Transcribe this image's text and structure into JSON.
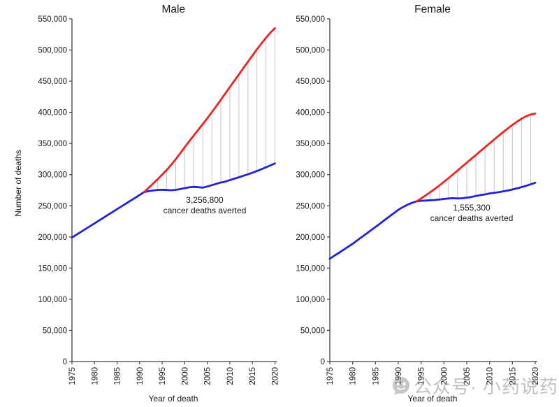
{
  "watermark": {
    "text": "公众号· 小药说药",
    "icon": "wechat-chat-bubble-icon",
    "color": "#9a9a9a"
  },
  "palette": {
    "observed_line": "#2222dd",
    "expected_line": "#ee2222",
    "connector_line": "#c6c6c6",
    "axis": "#404040"
  },
  "chart_data": [
    {
      "type": "line",
      "title": "Male",
      "xlabel": "Year of death",
      "ylabel": "Number of deaths",
      "xlim": [
        1975,
        2020
      ],
      "ylim": [
        0,
        550000
      ],
      "x_ticks": [
        1975,
        1980,
        1985,
        1990,
        1995,
        2000,
        2005,
        2010,
        2015,
        2020
      ],
      "y_ticks": [
        0,
        50000,
        100000,
        150000,
        200000,
        250000,
        300000,
        350000,
        400000,
        450000,
        500000,
        550000
      ],
      "grid": false,
      "annotation": {
        "value": "3,256,800",
        "label": "cancer deaths averted"
      },
      "series": [
        {
          "name": "observed deaths",
          "color_key": "observed_line",
          "start_year": 1975,
          "values": [
            199000,
            203600,
            208100,
            212700,
            217200,
            221800,
            226400,
            230900,
            235500,
            240000,
            244600,
            249200,
            253700,
            258300,
            262800,
            267400,
            272000,
            273500,
            274600,
            275400,
            275800,
            275300,
            274900,
            275600,
            276800,
            278400,
            279600,
            280400,
            279800,
            279200,
            281000,
            283100,
            285300,
            287400,
            288800,
            291200,
            293500,
            295800,
            298200,
            300500,
            303000,
            305800,
            308700,
            311700,
            314800,
            318000
          ]
        },
        {
          "name": "expected deaths",
          "color_key": "expected_line",
          "start_year": 1991,
          "values": [
            272000,
            278800,
            285700,
            292700,
            299900,
            307500,
            315800,
            324700,
            334100,
            344000,
            353500,
            362800,
            372000,
            381100,
            390400,
            400000,
            409900,
            420000,
            430200,
            440400,
            450600,
            460800,
            471000,
            481100,
            491100,
            500900,
            510400,
            519500,
            527800,
            535000
          ]
        }
      ],
      "connector_years": [
        1994,
        1996,
        1998,
        2000,
        2002,
        2004,
        2006,
        2008,
        2010,
        2012,
        2014,
        2016,
        2018,
        2020
      ]
    },
    {
      "type": "line",
      "title": "Female",
      "xlabel": "Year of death",
      "ylabel": "",
      "xlim": [
        1975,
        2020
      ],
      "ylim": [
        0,
        550000
      ],
      "x_ticks": [
        1975,
        1980,
        1985,
        1990,
        1995,
        2000,
        2005,
        2010,
        2015,
        2020
      ],
      "y_ticks": [
        0,
        50000,
        100000,
        150000,
        200000,
        250000,
        300000,
        350000,
        400000,
        450000,
        500000,
        550000
      ],
      "grid": false,
      "annotation": {
        "value": "1,555,300",
        "label": "cancer deaths averted"
      },
      "series": [
        {
          "name": "observed deaths",
          "color_key": "observed_line",
          "start_year": 1975,
          "values": [
            165000,
            169800,
            174600,
            179400,
            184200,
            189000,
            194400,
            199800,
            205200,
            210600,
            216000,
            221500,
            227000,
            232500,
            238000,
            243500,
            247800,
            251600,
            254700,
            257000,
            258100,
            258400,
            258900,
            259300,
            260100,
            261000,
            261800,
            262200,
            261700,
            262100,
            263000,
            264200,
            265700,
            267100,
            268300,
            269800,
            270900,
            272000,
            273200,
            274500,
            276100,
            277900,
            279900,
            282100,
            284400,
            287000
          ]
        },
        {
          "name": "expected deaths",
          "color_key": "expected_line",
          "start_year": 1994,
          "values": [
            257000,
            261800,
            266700,
            271700,
            277000,
            282600,
            288400,
            294400,
            300500,
            306700,
            312900,
            319100,
            325300,
            331500,
            337700,
            343900,
            350100,
            356300,
            362400,
            368400,
            374200,
            379700,
            384900,
            389700,
            393800,
            396400,
            398000
          ]
        }
      ],
      "connector_years": [
        1997,
        1999,
        2001,
        2003,
        2005,
        2007,
        2009,
        2011,
        2013,
        2015,
        2017,
        2019
      ]
    }
  ]
}
